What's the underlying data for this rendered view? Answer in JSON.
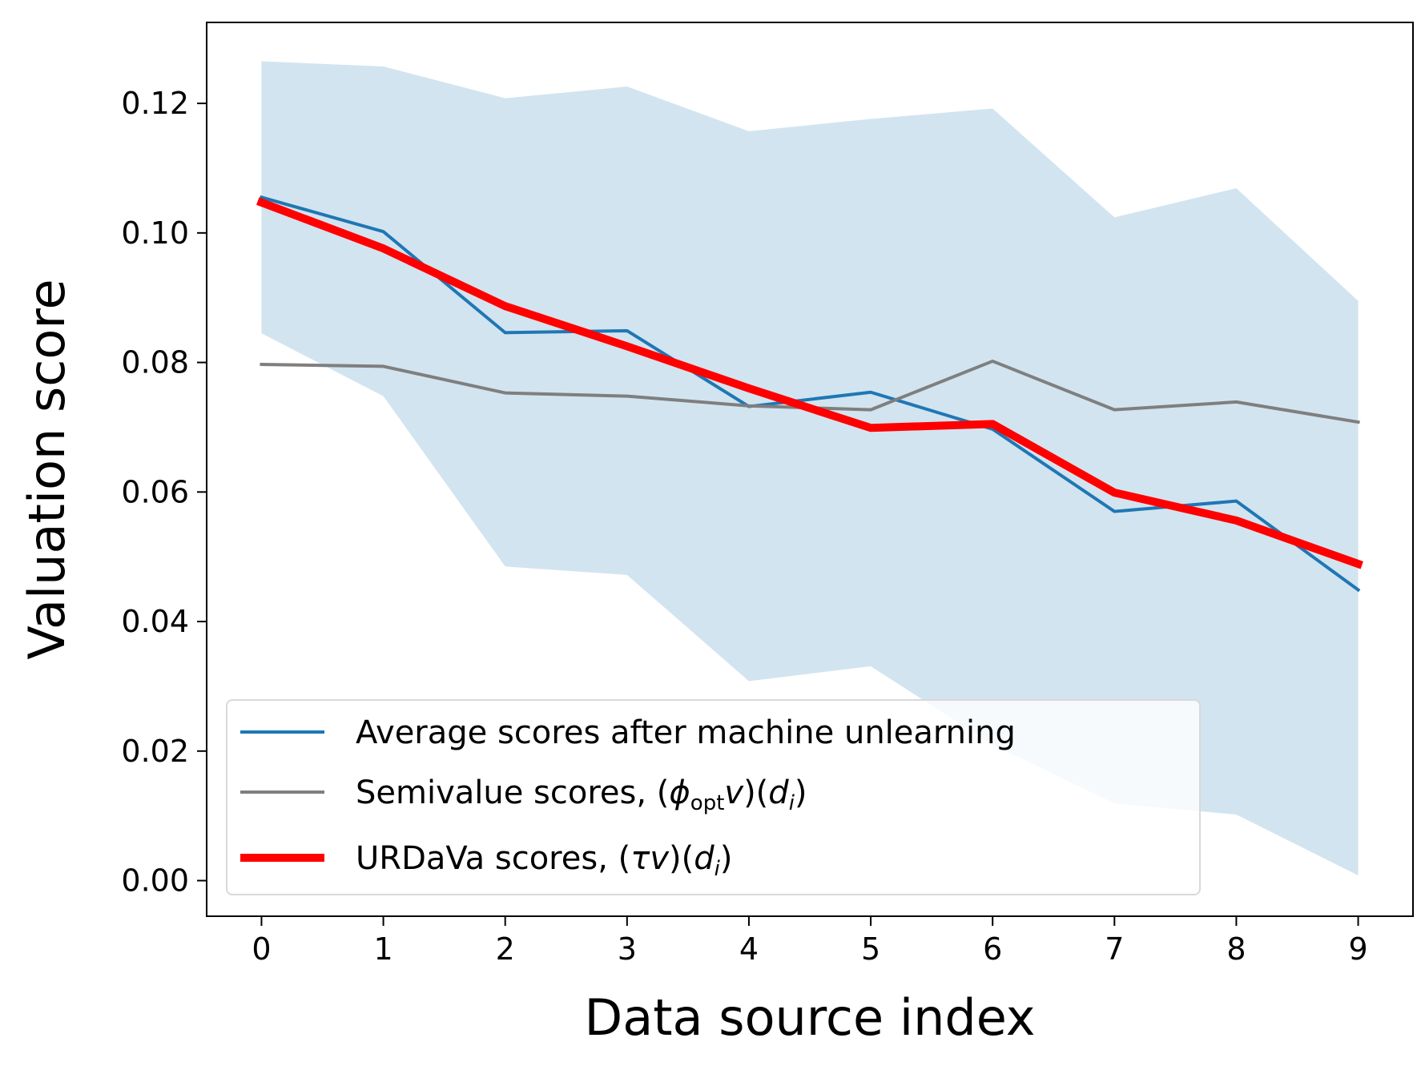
{
  "chart_data": {
    "type": "line",
    "xlabel": "Data source index",
    "ylabel": "Valuation score",
    "x": [
      0,
      1,
      2,
      3,
      4,
      5,
      6,
      7,
      8,
      9
    ],
    "xticks": [
      "0",
      "1",
      "2",
      "3",
      "4",
      "5",
      "6",
      "7",
      "8",
      "9"
    ],
    "yticks": [
      0.0,
      0.02,
      0.04,
      0.06,
      0.08,
      0.1,
      0.12
    ],
    "ytick_labels": [
      "0.00",
      "0.02",
      "0.04",
      "0.06",
      "0.08",
      "0.10",
      "0.12"
    ],
    "xlim": [
      -0.45,
      9.45
    ],
    "ylim": [
      -0.0055,
      0.1325
    ],
    "grid": false,
    "legend_position": "lower-left",
    "band": {
      "upper": [
        0.1265,
        0.1257,
        0.1208,
        0.1226,
        0.1157,
        0.1176,
        0.1192,
        0.1024,
        0.1069,
        0.0895
      ],
      "lower": [
        0.0845,
        0.0748,
        0.0485,
        0.0472,
        0.0308,
        0.0331,
        0.021,
        0.0119,
        0.0102,
        0.0008
      ],
      "color": "#1f77b4",
      "opacity": 0.2
    },
    "series": [
      {
        "name": "Average scores after machine unlearning",
        "values": [
          0.1055,
          0.1002,
          0.0846,
          0.0849,
          0.0732,
          0.0754,
          0.0697,
          0.057,
          0.0586,
          0.0449
        ],
        "color": "#1f77b4",
        "width": "thin"
      },
      {
        "name_text": "Semivalue scores, (",
        "name_math": [
          "ϕ",
          "opt",
          "v",
          "d",
          "i"
        ],
        "values": [
          0.0797,
          0.0794,
          0.0753,
          0.0748,
          0.0733,
          0.0727,
          0.0802,
          0.0727,
          0.0739,
          0.0708
        ],
        "color": "#7f7f7f",
        "width": "thin"
      },
      {
        "name_text": "URDaVa scores, (",
        "name_math": [
          "τ",
          "v",
          "d",
          "i"
        ],
        "values": [
          0.1047,
          0.0976,
          0.0887,
          0.0825,
          0.076,
          0.0699,
          0.0705,
          0.0599,
          0.0556,
          0.0489
        ],
        "color": "#ff0000",
        "width": "thick"
      }
    ]
  }
}
